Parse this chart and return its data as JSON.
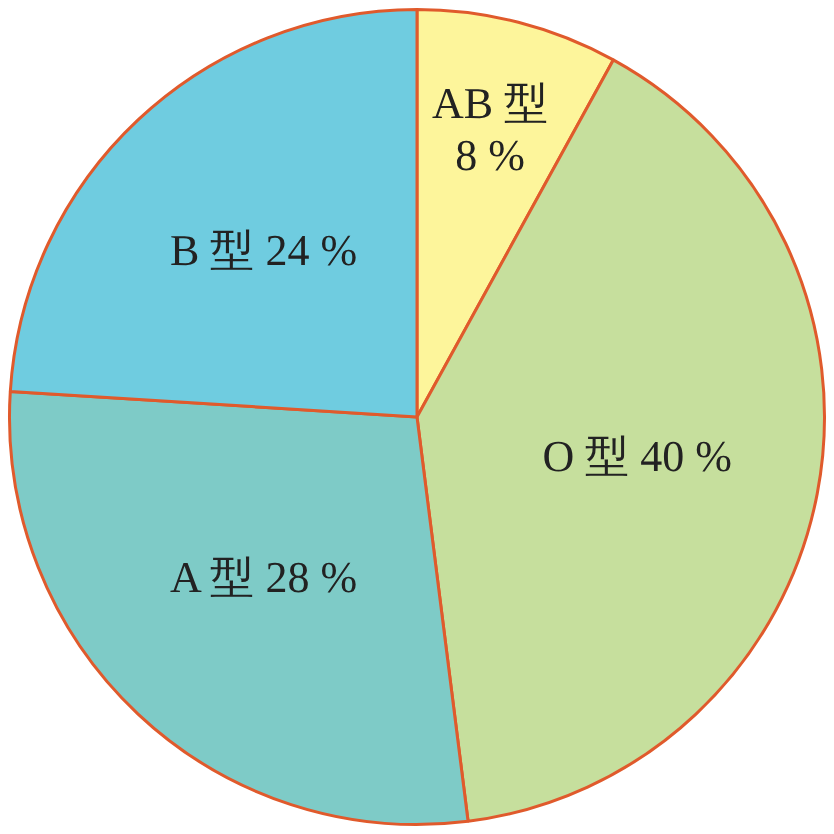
{
  "chart_data": {
    "type": "pie",
    "categories": [
      "AB 型",
      "O 型",
      "A 型",
      "B 型"
    ],
    "values": [
      8,
      40,
      28,
      24
    ],
    "value_labels": [
      "8 %",
      "40 %",
      "28 %",
      "24 %"
    ],
    "colors": [
      "#fdf59b",
      "#c6df9d",
      "#7ecbc7",
      "#6fcce0"
    ],
    "legend": false
  }
}
